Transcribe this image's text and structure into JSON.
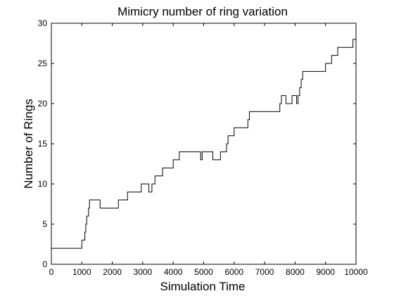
{
  "chart_data": {
    "type": "line",
    "title": "Mimicry number of ring variation",
    "xlabel": "Simulation Time",
    "ylabel": "Number of Rings",
    "xlim": [
      0,
      10000
    ],
    "ylim": [
      0,
      30
    ],
    "x_ticks": [
      0,
      1000,
      2000,
      3000,
      4000,
      5000,
      6000,
      7000,
      8000,
      9000,
      10000
    ],
    "y_ticks": [
      0,
      5,
      10,
      15,
      20,
      25,
      30
    ],
    "grid": false,
    "series": [
      {
        "color": "#000000",
        "step": true,
        "points": [
          [
            0,
            2
          ],
          [
            1000,
            3
          ],
          [
            1100,
            4
          ],
          [
            1130,
            5
          ],
          [
            1160,
            6
          ],
          [
            1220,
            7
          ],
          [
            1250,
            8
          ],
          [
            1600,
            7
          ],
          [
            2200,
            8
          ],
          [
            2500,
            9
          ],
          [
            2950,
            10
          ],
          [
            3200,
            9
          ],
          [
            3300,
            10
          ],
          [
            3400,
            11
          ],
          [
            3650,
            12
          ],
          [
            4000,
            13
          ],
          [
            4200,
            14
          ],
          [
            4900,
            13
          ],
          [
            4950,
            14
          ],
          [
            5300,
            13
          ],
          [
            5550,
            14
          ],
          [
            5750,
            15
          ],
          [
            5800,
            16
          ],
          [
            6000,
            17
          ],
          [
            6450,
            18
          ],
          [
            6500,
            19
          ],
          [
            7500,
            20
          ],
          [
            7550,
            21
          ],
          [
            7700,
            20
          ],
          [
            7900,
            21
          ],
          [
            8050,
            20
          ],
          [
            8100,
            21
          ],
          [
            8150,
            22
          ],
          [
            8200,
            23
          ],
          [
            8250,
            24
          ],
          [
            9000,
            25
          ],
          [
            9200,
            26
          ],
          [
            9400,
            27
          ],
          [
            9900,
            28
          ],
          [
            10000,
            28
          ]
        ]
      }
    ]
  }
}
